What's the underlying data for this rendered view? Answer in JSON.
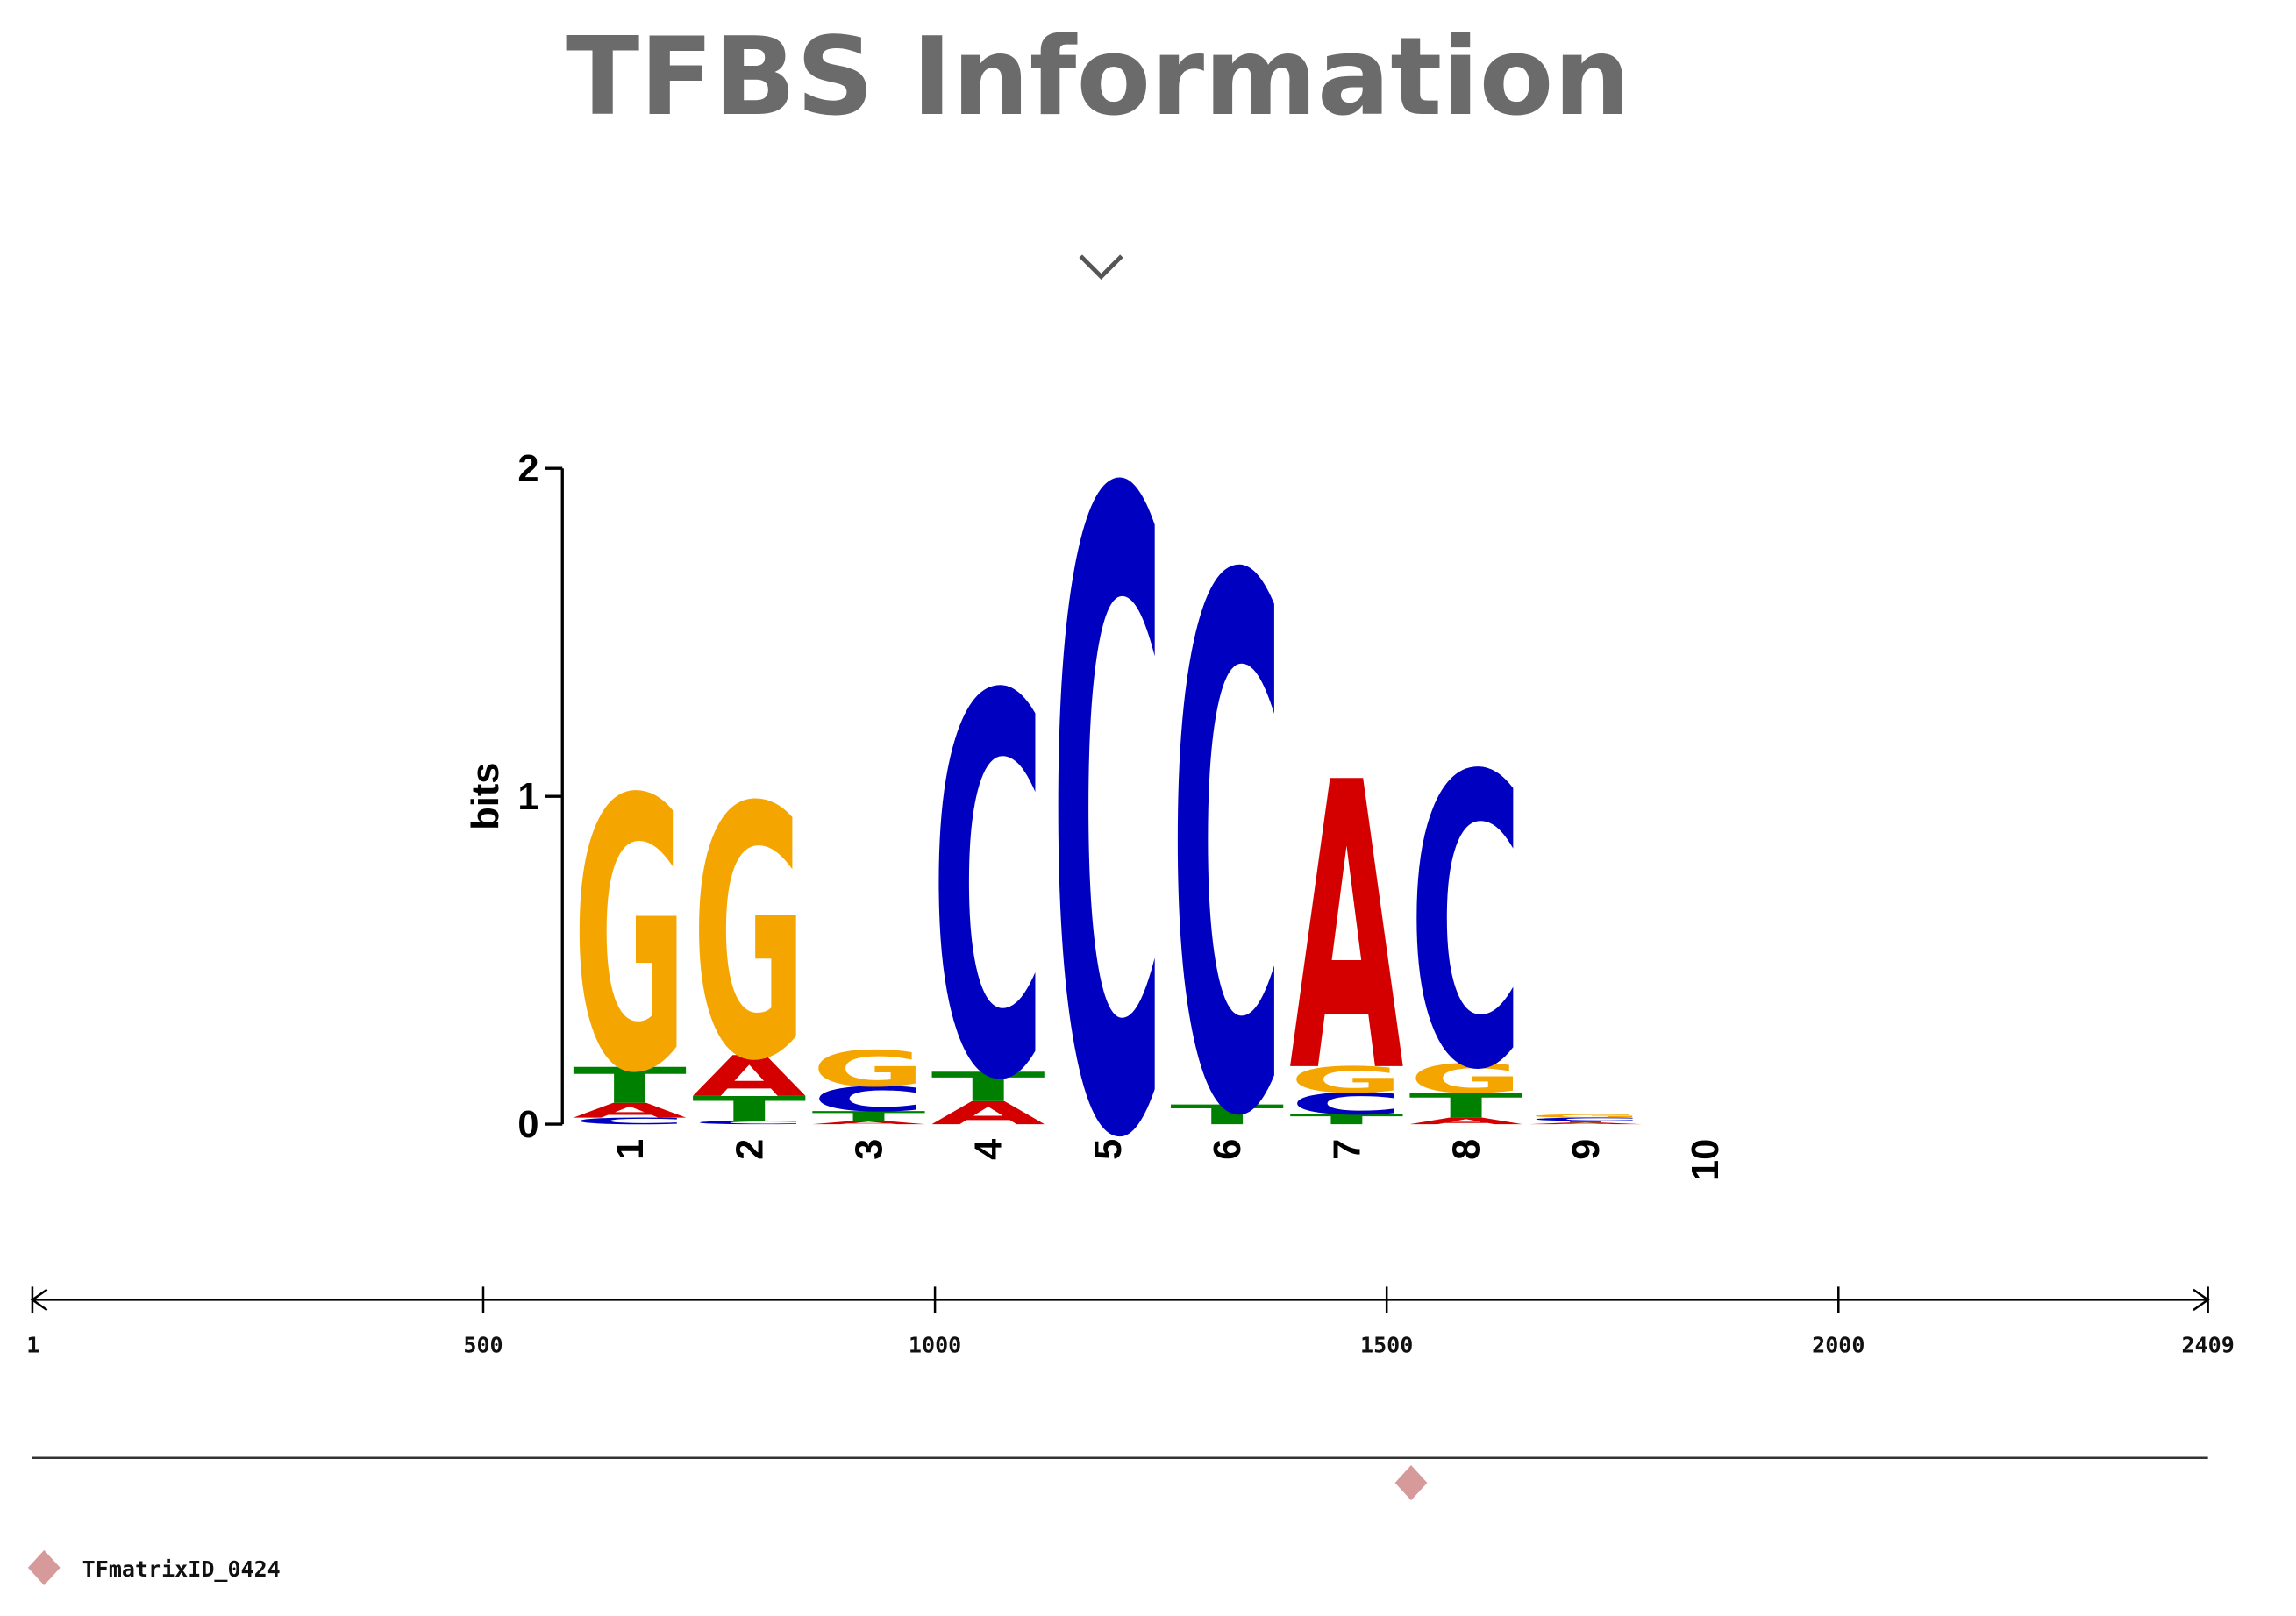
{
  "header": {
    "title": "TFBS Information"
  },
  "chart_data": [
    {
      "type": "logo",
      "ylabel": "bits",
      "ylim": [
        0,
        2
      ],
      "yticks": [
        0,
        1,
        2
      ],
      "categories": [
        "1",
        "2",
        "3",
        "4",
        "5",
        "6",
        "7",
        "8",
        "9",
        "10"
      ],
      "series": [
        {
          "name": "A",
          "color": "#d40000",
          "values": [
            0.045,
            0.125,
            0.01,
            0.07,
            0,
            0,
            0.88,
            0.02,
            0.005,
            0
          ]
        },
        {
          "name": "C",
          "color": "#0000c0",
          "values": [
            0.02,
            0.01,
            0.076,
            1.16,
            1.94,
            1.62,
            0.067,
            0.89,
            0.01,
            0
          ]
        },
        {
          "name": "G",
          "color": "#f5a500",
          "values": [
            0.83,
            0.77,
            0.11,
            0,
            0,
            0,
            0.08,
            0.09,
            0.01,
            0
          ]
        },
        {
          "name": "T",
          "color": "#008000",
          "values": [
            0.11,
            0.076,
            0.03,
            0.09,
            0,
            0.06,
            0.03,
            0.076,
            0.005,
            0
          ]
        }
      ]
    },
    {
      "type": "track",
      "xlim": [
        1,
        2409
      ],
      "xticks": [
        1,
        500,
        1000,
        1500,
        2000,
        2409
      ],
      "series": [
        {
          "name": "TFmatrixID_0424",
          "color": "#d69a9a",
          "x": [
            1527
          ]
        }
      ]
    }
  ]
}
